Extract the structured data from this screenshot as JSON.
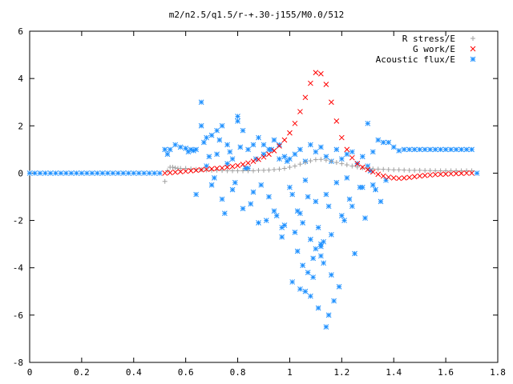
{
  "chart_data": {
    "type": "scatter",
    "title": "m2/n2.5/q1.5/r-+.30-j155/M0.0/512",
    "xlabel": "",
    "ylabel": "",
    "xlim": [
      0,
      1.8
    ],
    "ylim": [
      -8,
      6
    ],
    "xticks": [
      "0",
      "0.2",
      "0.4",
      "0.6",
      "0.8",
      "1",
      "1.2",
      "1.4",
      "1.6",
      "1.8"
    ],
    "yticks": [
      "-8",
      "-6",
      "-4",
      "-2",
      "0",
      "2",
      "4",
      "6"
    ],
    "grid": false,
    "legend_position": "top-right",
    "series": [
      {
        "name": "R stress/E",
        "marker": "+",
        "color": "#a0a0a0",
        "x": [
          0.52,
          0.53,
          0.54,
          0.55,
          0.56,
          0.57,
          0.58,
          0.6,
          0.62,
          0.64,
          0.66,
          0.68,
          0.7,
          0.72,
          0.74,
          0.76,
          0.78,
          0.8,
          0.82,
          0.84,
          0.86,
          0.88,
          0.9,
          0.92,
          0.94,
          0.96,
          0.98,
          1.0,
          1.02,
          1.04,
          1.06,
          1.08,
          1.1,
          1.12,
          1.14,
          1.16,
          1.18,
          1.2,
          1.22,
          1.24,
          1.26,
          1.28,
          1.3,
          1.32,
          1.34,
          1.36,
          1.38,
          1.4,
          1.42,
          1.44,
          1.46,
          1.48,
          1.5,
          1.52,
          1.54,
          1.56,
          1.58,
          1.6,
          1.62,
          1.64,
          1.66,
          1.68,
          1.7
        ],
        "y": [
          -0.35,
          0.1,
          0.25,
          0.25,
          0.22,
          0.2,
          0.2,
          0.2,
          0.18,
          0.16,
          0.15,
          0.13,
          0.12,
          0.12,
          0.11,
          0.1,
          0.1,
          0.1,
          0.1,
          0.1,
          0.1,
          0.12,
          0.12,
          0.13,
          0.15,
          0.17,
          0.2,
          0.25,
          0.3,
          0.38,
          0.45,
          0.52,
          0.57,
          0.58,
          0.55,
          0.5,
          0.45,
          0.4,
          0.35,
          0.3,
          0.26,
          0.22,
          0.2,
          0.18,
          0.17,
          0.16,
          0.15,
          0.14,
          0.14,
          0.13,
          0.12,
          0.12,
          0.12,
          0.11,
          0.11,
          0.1,
          0.1,
          0.1,
          0.1,
          0.1,
          0.1,
          0.1,
          0.1
        ]
      },
      {
        "name": "G work/E",
        "marker": "x",
        "color": "#ff0000",
        "x": [
          0.52,
          0.54,
          0.56,
          0.58,
          0.6,
          0.62,
          0.64,
          0.66,
          0.68,
          0.7,
          0.72,
          0.74,
          0.76,
          0.78,
          0.8,
          0.82,
          0.84,
          0.86,
          0.88,
          0.9,
          0.92,
          0.94,
          0.96,
          0.98,
          1.0,
          1.02,
          1.04,
          1.06,
          1.08,
          1.1,
          1.12,
          1.14,
          1.16,
          1.18,
          1.2,
          1.22,
          1.24,
          1.26,
          1.28,
          1.3,
          1.32,
          1.34,
          1.36,
          1.38,
          1.4,
          1.42,
          1.44,
          1.46,
          1.48,
          1.5,
          1.52,
          1.54,
          1.56,
          1.58,
          1.6,
          1.62,
          1.64,
          1.66,
          1.68,
          1.7
        ],
        "y": [
          0.0,
          0.02,
          0.04,
          0.06,
          0.08,
          0.1,
          0.12,
          0.14,
          0.16,
          0.18,
          0.2,
          0.22,
          0.25,
          0.28,
          0.32,
          0.37,
          0.43,
          0.5,
          0.58,
          0.68,
          0.8,
          0.95,
          1.15,
          1.4,
          1.7,
          2.1,
          2.6,
          3.2,
          3.8,
          4.25,
          4.2,
          3.75,
          3.0,
          2.2,
          1.5,
          1.0,
          0.65,
          0.4,
          0.25,
          0.15,
          0.05,
          -0.05,
          -0.12,
          -0.17,
          -0.2,
          -0.22,
          -0.2,
          -0.18,
          -0.15,
          -0.12,
          -0.1,
          -0.08,
          -0.06,
          -0.05,
          -0.04,
          -0.03,
          -0.02,
          -0.01,
          0.0,
          0.0
        ]
      },
      {
        "name": "Acoustic flux/E",
        "marker": "*",
        "color": "#1e90ff",
        "x": [
          0.0,
          0.02,
          0.04,
          0.06,
          0.08,
          0.1,
          0.12,
          0.14,
          0.16,
          0.18,
          0.2,
          0.22,
          0.24,
          0.26,
          0.28,
          0.3,
          0.32,
          0.34,
          0.36,
          0.38,
          0.4,
          0.42,
          0.44,
          0.46,
          0.48,
          0.5,
          0.52,
          0.53,
          0.54,
          0.56,
          0.58,
          0.6,
          0.61,
          0.62,
          0.63,
          0.64,
          0.66,
          0.67,
          0.68,
          0.7,
          0.72,
          0.74,
          0.76,
          0.78,
          0.8,
          0.82,
          0.84,
          0.86,
          0.88,
          0.9,
          0.92,
          0.94,
          0.96,
          0.98,
          1.0,
          1.02,
          1.04,
          1.06,
          1.08,
          1.1,
          1.12,
          1.14,
          1.16,
          1.18,
          1.2,
          1.22,
          1.24,
          1.26,
          1.28,
          1.3,
          1.32,
          1.34,
          1.36,
          1.38,
          1.4,
          1.42,
          1.44,
          1.46,
          1.48,
          1.5,
          1.52,
          1.54,
          1.56,
          1.58,
          1.6,
          1.62,
          1.64,
          1.66,
          1.68,
          1.7,
          1.72,
          0.66,
          0.64,
          0.68,
          0.7,
          0.72,
          0.74,
          0.76,
          0.78,
          0.8,
          0.82,
          0.84,
          0.86,
          0.88,
          0.9,
          0.92,
          0.94,
          0.96,
          0.98,
          1.0,
          1.02,
          1.04,
          1.06,
          1.08,
          1.1,
          1.12,
          1.14,
          1.16,
          1.18,
          1.2,
          1.22,
          1.24,
          1.26,
          1.28,
          1.3,
          1.32,
          0.69,
          0.71,
          0.73,
          0.75,
          0.77,
          0.79,
          0.81,
          0.83,
          0.85,
          0.87,
          0.89,
          0.91,
          0.93,
          0.95,
          0.97,
          0.99,
          1.01,
          1.03,
          1.05,
          1.07,
          1.09,
          1.11,
          1.13,
          1.15,
          1.17,
          1.19,
          1.21,
          1.23,
          1.25,
          1.27,
          1.29,
          1.31,
          1.33,
          1.35,
          1.37,
          0.97,
          1.03,
          1.06,
          1.09,
          1.12,
          1.14,
          1.07,
          1.11,
          1.05,
          1.13,
          1.1,
          1.01,
          1.15,
          1.08,
          1.12,
          1.04,
          1.16
        ],
        "y": [
          0,
          0,
          0,
          0,
          0,
          0,
          0,
          0,
          0,
          0,
          0,
          0,
          0,
          0,
          0,
          0,
          0,
          0,
          0,
          0,
          0,
          0,
          0,
          0,
          0,
          0,
          1.0,
          0.8,
          1.0,
          1.2,
          1.1,
          1.05,
          0.9,
          1.0,
          0.95,
          1.0,
          3.0,
          1.3,
          1.5,
          1.6,
          1.8,
          2.0,
          1.2,
          0.6,
          2.4,
          1.8,
          1.0,
          1.2,
          1.5,
          0.8,
          1.0,
          1.4,
          1.2,
          0.7,
          0.6,
          0.8,
          1.0,
          0.5,
          1.2,
          0.9,
          1.1,
          0.7,
          0.5,
          1.0,
          0.6,
          0.8,
          0.9,
          0.4,
          0.7,
          2.1,
          0.9,
          1.4,
          1.3,
          1.3,
          1.1,
          0.95,
          1.0,
          1.0,
          1.0,
          1.0,
          1.0,
          1.0,
          1.0,
          1.0,
          1.0,
          1.0,
          1.0,
          1.0,
          1.0,
          1.0,
          0.0,
          2.0,
          -0.9,
          0.3,
          -0.5,
          0.8,
          -1.1,
          0.4,
          -0.7,
          2.2,
          -1.5,
          0.2,
          -0.8,
          -2.1,
          1.2,
          -1.0,
          -1.6,
          0.6,
          -2.2,
          -0.6,
          -2.5,
          -1.7,
          -0.3,
          -2.8,
          -1.2,
          -3.1,
          -0.9,
          -2.6,
          -0.4,
          -1.8,
          -0.2,
          -1.4,
          0.4,
          -0.6,
          0.3,
          -0.5,
          0.7,
          -0.2,
          1.4,
          -1.7,
          0.9,
          -0.4,
          1.1,
          0.2,
          -1.3,
          0.6,
          -0.5,
          -2.0,
          1.0,
          -1.8,
          -2.3,
          0.5,
          -0.9,
          -1.6,
          -2.1,
          -1.0,
          -3.6,
          -2.3,
          -3.8,
          -1.4,
          -5.4,
          -4.8,
          -2.0,
          -1.1,
          -3.4,
          -0.6,
          -1.9,
          0.1,
          -0.7,
          -1.2,
          -0.3,
          -2.7,
          -3.3,
          -5.0,
          -4.4,
          -3.0,
          -6.5,
          -4.2,
          -5.7,
          -3.9,
          -2.9,
          -3.2,
          -4.6,
          -6.0,
          -5.2,
          -3.5,
          -4.9,
          -4.3
        ]
      }
    ]
  }
}
